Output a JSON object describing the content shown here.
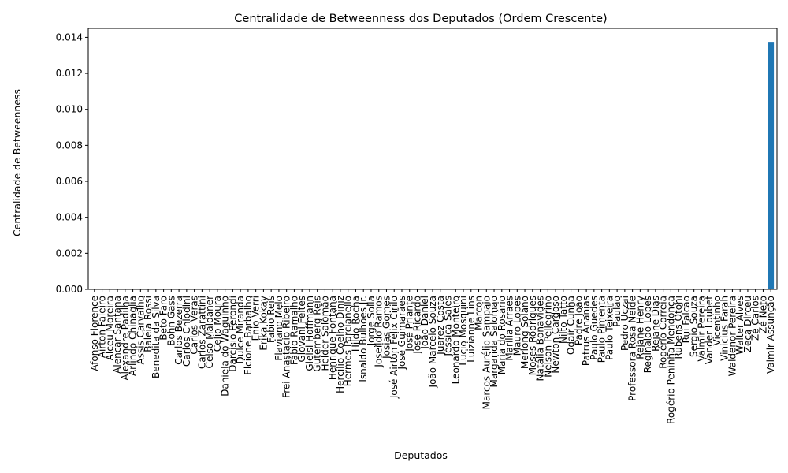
{
  "chart_data": {
    "type": "bar",
    "title": "Centralidade de Betweenness dos Deputados (Ordem Crescente)",
    "xlabel": "Deputados",
    "ylabel": "Centralidade de Betweenness",
    "ylim": [
      0,
      0.0145
    ],
    "yticks": [
      "0.000",
      "0.002",
      "0.004",
      "0.006",
      "0.008",
      "0.010",
      "0.012",
      "0.014"
    ],
    "grid": false,
    "color": "#1f77b4",
    "categories": [
      "Afonso Florence",
      "Airton Faleiro",
      "Alceu Moreira",
      "Alencar Santana",
      "Alexandre Padilha",
      "Arlindo Chinaglia",
      "Assis Carvalho",
      "Baleia Rossi",
      "Benedita da Silva",
      "Beto Faro",
      "Bohn Gass",
      "Carlos Bezerra",
      "Carlos Chiodini",
      "Carlos Veras",
      "Carlos Zarattini",
      "Celso Maldaner",
      "Celio Moura",
      "Daniela do Waguinho",
      "Darcísio Perondi",
      "Dulce Miranda",
      "Elcione Barbalho",
      "Enio Verri",
      "Erika Kokay",
      "Fabio Reis",
      "Flaviano Melo",
      "Frei Anastacio Ribeiro",
      "Fábio Ramalho",
      "Giovani Feltes",
      "Gleisi Hoffmann",
      "Gutemberg Reis",
      "Helder Salomão",
      "Henrique Fontana",
      "Hercílio Coelho Diniz",
      "Hermes Parcianello",
      "Hildo Rocha",
      "Isnaldo Bulhões Jr.",
      "Jorge Solla",
      "Joseildo Ramos",
      "Josias Gomes",
      "José Airton Félix Cirilo",
      "José Guimarães",
      "José Priante",
      "José Ricardo",
      "João Daniel",
      "João Marcelo Souza",
      "Juarez Costa",
      "Jéssica Sales",
      "Leonardo Monteiro",
      "Lucio Mosquini",
      "Luizianne Lins",
      "Marcon",
      "Marcos Aurélio Sampaio",
      "Margarida Salomão",
      "Maria do Rosário",
      "Marília Arraes",
      "Mauro Lopes",
      "Merlong Solano",
      "Moses Rodrigues",
      "Natália Bonavides",
      "Nelson Pellegrino",
      "Newton Cardoso",
      "Nilto Tatto",
      "Odair Cunha",
      "Padre João",
      "Patrus Ananias",
      "Paulo Guedes",
      "Paulo Pimenta",
      "Paulo Teixeira",
      "Paulão",
      "Pedro Uczai",
      "Professora Rosa Neide",
      "Rejane Henry",
      "Reginaldo Lopes",
      "Rejane Dias",
      "Rogério Correia",
      "Rogério Peninha Mendonça",
      "Rubens Otoni",
      "Rui Falcão",
      "Sergio Souza",
      "Valmir Pereira",
      "Vander Loubet",
      "Vicentinho",
      "Vinicius Farah",
      "Waldenor Pereira",
      "Walter Alves",
      "Zeca Dirceu",
      "Zé Carlos",
      "Zé Neto",
      "Valmir Assunção"
    ],
    "values": [
      0,
      0,
      0,
      0,
      0,
      0,
      0,
      0,
      0,
      0,
      0,
      0,
      0,
      0,
      0,
      0,
      0,
      0,
      0,
      0,
      0,
      0,
      0,
      0,
      0,
      0,
      0,
      0,
      0,
      0,
      0,
      0,
      0,
      0,
      0,
      0,
      0,
      0,
      0,
      0,
      0,
      0,
      0,
      0,
      0,
      0,
      0,
      0,
      0,
      0,
      0,
      0,
      0,
      0,
      0,
      0,
      0,
      0,
      0,
      0,
      0,
      0,
      0,
      0,
      0,
      0,
      0,
      0,
      0,
      0,
      0,
      0,
      0,
      0,
      0,
      0,
      0,
      0,
      0,
      0,
      0,
      0,
      0,
      0,
      0,
      0,
      0,
      0,
      0.01375
    ]
  }
}
